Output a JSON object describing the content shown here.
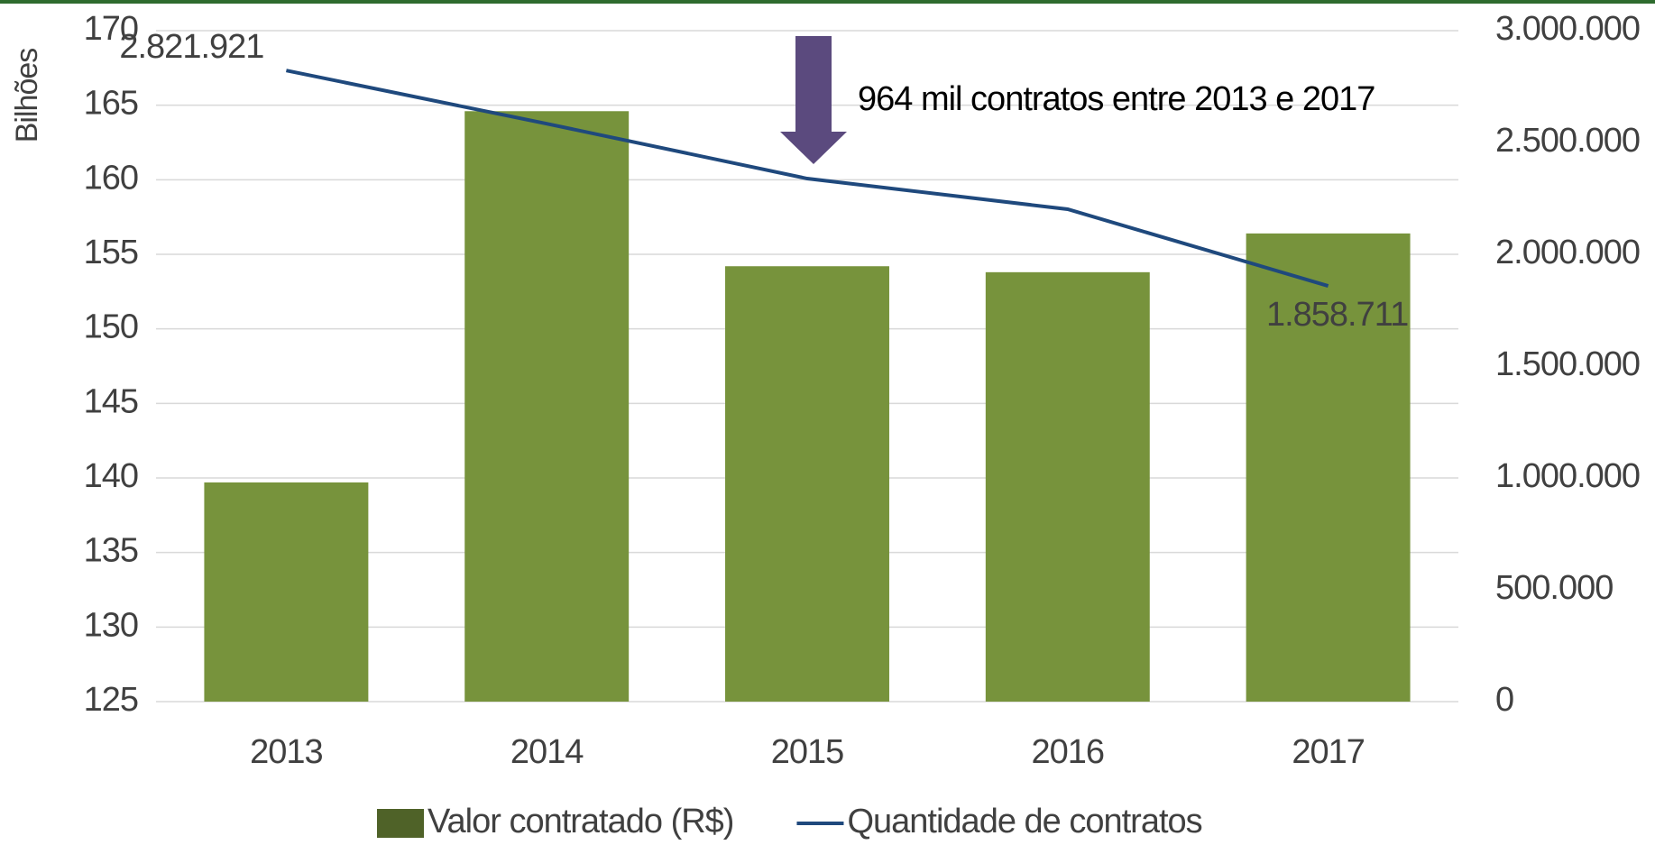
{
  "chart_data": {
    "type": "bar",
    "y_label": "Bilhões",
    "annotation": "964 mil contratos entre 2013 e 2017",
    "annotation_color": "#5b4a7e",
    "categories": [
      "2013",
      "2014",
      "2015",
      "2016",
      "2017"
    ],
    "series": [
      {
        "name": "Valor contratado (R$)",
        "type": "bar",
        "color": "#77933c",
        "legend_color": "#4f6228",
        "values": [
          139.7,
          164.6,
          154.2,
          153.8,
          156.4
        ]
      },
      {
        "name": "Quantidade de contratos",
        "type": "line",
        "axis": "y2",
        "color": "#1f497d",
        "values": [
          2821921,
          2584000,
          2338600,
          2201600,
          1858711
        ],
        "value_labels": [
          "2.821.921",
          null,
          null,
          null,
          "1.858.711"
        ]
      }
    ],
    "ylim": [
      125,
      170
    ],
    "yticks": [
      125,
      130,
      135,
      140,
      145,
      150,
      155,
      160,
      165,
      170
    ],
    "y2lim": [
      0,
      3000000
    ],
    "y2ticks": [
      0,
      {
        "value": 500000,
        "label": "500.000"
      },
      {
        "value": 1000000,
        "label": "1.000.000"
      },
      {
        "value": 1500000,
        "label": "1.500.000"
      },
      {
        "value": 2000000,
        "label": "2.000.000"
      },
      {
        "value": 2500000,
        "label": "2.500.000"
      },
      {
        "value": 3000000,
        "label": "3.000.000"
      }
    ],
    "grid": true,
    "legend": "bottom"
  }
}
